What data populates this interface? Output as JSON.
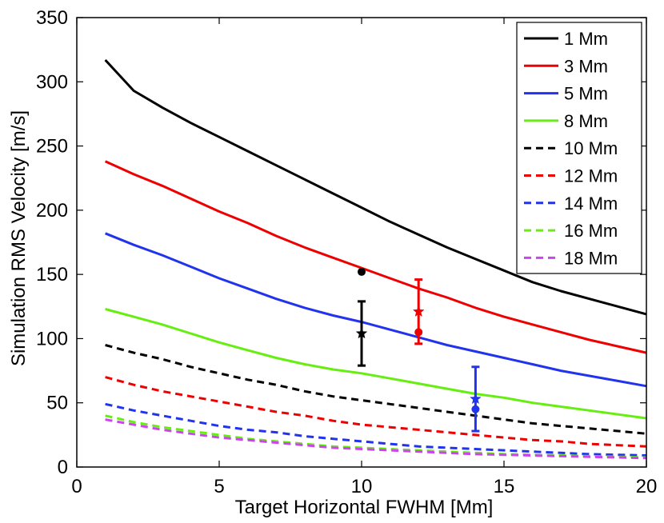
{
  "chart_data": {
    "type": "line",
    "title": "",
    "xlabel": "Target Horizontal FWHM  [Mm]",
    "ylabel": "Simulation RMS Velocity  [m/s]",
    "xlim": [
      0,
      20
    ],
    "ylim": [
      0,
      350
    ],
    "xticks": [
      "0",
      "5",
      "10",
      "15",
      "20"
    ],
    "yticks": [
      "0",
      "50",
      "100",
      "150",
      "200",
      "250",
      "300",
      "350"
    ],
    "grid": false,
    "legend_position": "top-right",
    "x": [
      1,
      2,
      3,
      4,
      5,
      6,
      7,
      8,
      9,
      10,
      11,
      12,
      13,
      14,
      15,
      16,
      17,
      18,
      19,
      20
    ],
    "series": [
      {
        "name": "1 Mm",
        "color": "#000000",
        "style": "solid",
        "values": [
          317,
          293,
          280,
          268,
          257,
          246,
          235,
          224,
          213,
          202,
          191,
          181,
          171,
          162,
          153,
          144,
          137,
          131,
          125,
          119
        ]
      },
      {
        "name": "3 Mm",
        "color": "#ee0000",
        "style": "solid",
        "values": [
          238,
          228,
          219,
          209,
          199,
          190,
          180,
          171,
          163,
          155,
          147,
          139,
          132,
          124,
          117,
          111,
          105,
          99,
          94,
          89
        ]
      },
      {
        "name": "5 Mm",
        "color": "#2233ee",
        "style": "solid",
        "values": [
          182,
          173,
          165,
          156,
          147,
          139,
          131,
          124,
          118,
          113,
          107,
          101,
          95,
          90,
          85,
          80,
          75,
          71,
          67,
          63
        ]
      },
      {
        "name": "8 Mm",
        "color": "#66ee11",
        "style": "solid",
        "values": [
          123,
          117,
          111,
          104,
          97,
          91,
          85,
          80,
          76,
          73,
          69,
          65,
          61,
          57,
          54,
          50,
          47,
          44,
          41,
          38
        ]
      },
      {
        "name": "10 Mm",
        "color": "#000000",
        "style": "dashed",
        "values": [
          95,
          89,
          84,
          78,
          73,
          68,
          64,
          59,
          55,
          52,
          49,
          46,
          43,
          40,
          37,
          34,
          32,
          30,
          28,
          26
        ]
      },
      {
        "name": "12 Mm",
        "color": "#ee0000",
        "style": "dashed",
        "values": [
          70,
          64,
          59,
          55,
          51,
          47,
          43,
          40,
          36,
          33,
          31,
          29,
          27,
          25,
          23,
          21,
          20,
          18,
          17,
          16
        ]
      },
      {
        "name": "14 Mm",
        "color": "#2233ee",
        "style": "dashed",
        "values": [
          49,
          44,
          40,
          36,
          32,
          29,
          27,
          24,
          22,
          20,
          18,
          16,
          15,
          14,
          13,
          12,
          11,
          10,
          9.5,
          9
        ]
      },
      {
        "name": "16 Mm",
        "color": "#66ee11",
        "style": "dashed",
        "values": [
          40,
          35,
          31,
          28,
          25,
          22,
          20,
          18,
          16,
          15,
          14,
          13,
          12,
          11,
          10,
          9.5,
          9,
          8.5,
          8,
          7.5
        ]
      },
      {
        "name": "18 Mm",
        "color": "#cc44ee",
        "style": "dashed",
        "values": [
          37,
          33,
          29,
          26,
          23,
          21,
          19,
          17,
          15,
          14,
          13,
          12,
          11,
          10,
          9.5,
          9,
          8.5,
          8,
          7.5,
          7
        ]
      }
    ],
    "observations": [
      {
        "color": "#000000",
        "x": 10,
        "star": 104,
        "dot": 152,
        "err_low": 79,
        "err_high": 129
      },
      {
        "color": "#ee0000",
        "x": 12,
        "star": 121,
        "dot": 105,
        "err_low": 96,
        "err_high": 146
      },
      {
        "color": "#2233ee",
        "x": 14,
        "star": 53,
        "dot": 45,
        "err_low": 28,
        "err_high": 78
      }
    ]
  }
}
